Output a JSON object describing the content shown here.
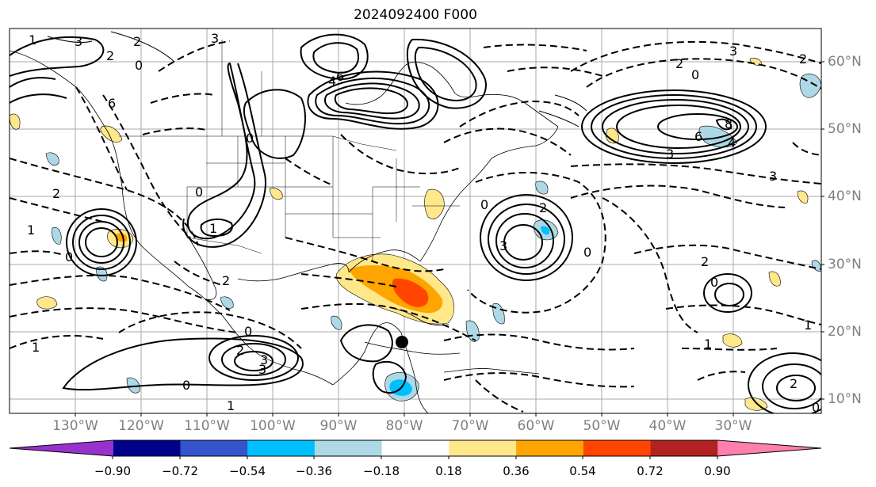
{
  "title": "2024092400 F000",
  "lon_labels": [
    "130°W",
    "120°W",
    "110°W",
    "100°W",
    "90°W",
    "80°W",
    "70°W",
    "60°W",
    "50°W",
    "40°W",
    "30°W"
  ],
  "lat_labels": [
    "60°N",
    "50°N",
    "40°N",
    "30°N",
    "20°N",
    "10°N"
  ],
  "colorbar": {
    "ticks": [
      "−0.90",
      "−0.72",
      "−0.54",
      "−0.36",
      "−0.18",
      "0.18",
      "0.36",
      "0.54",
      "0.72",
      "0.90"
    ],
    "colors": [
      "#9932cc",
      "#00008b",
      "#3355cc",
      "#00bfff",
      "#add8e6",
      "#ffffff",
      "#ffe88a",
      "#ffa500",
      "#ff4500",
      "#b22222",
      "#ff7fae"
    ]
  },
  "contour_labels": [
    "1",
    "3",
    "2",
    "0",
    "6",
    "4",
    "2",
    "0",
    "3",
    "6",
    "2",
    "0",
    "3",
    "1",
    "2",
    "0",
    "8",
    "6",
    "4",
    "3",
    "0",
    "2",
    "0",
    "2",
    "3",
    "1",
    "2",
    "3",
    "0",
    "1",
    "3",
    "2",
    "1",
    "0",
    "2",
    "2",
    "3",
    "0",
    "1",
    "0",
    "0",
    "1"
  ],
  "storm_marker": "center"
}
